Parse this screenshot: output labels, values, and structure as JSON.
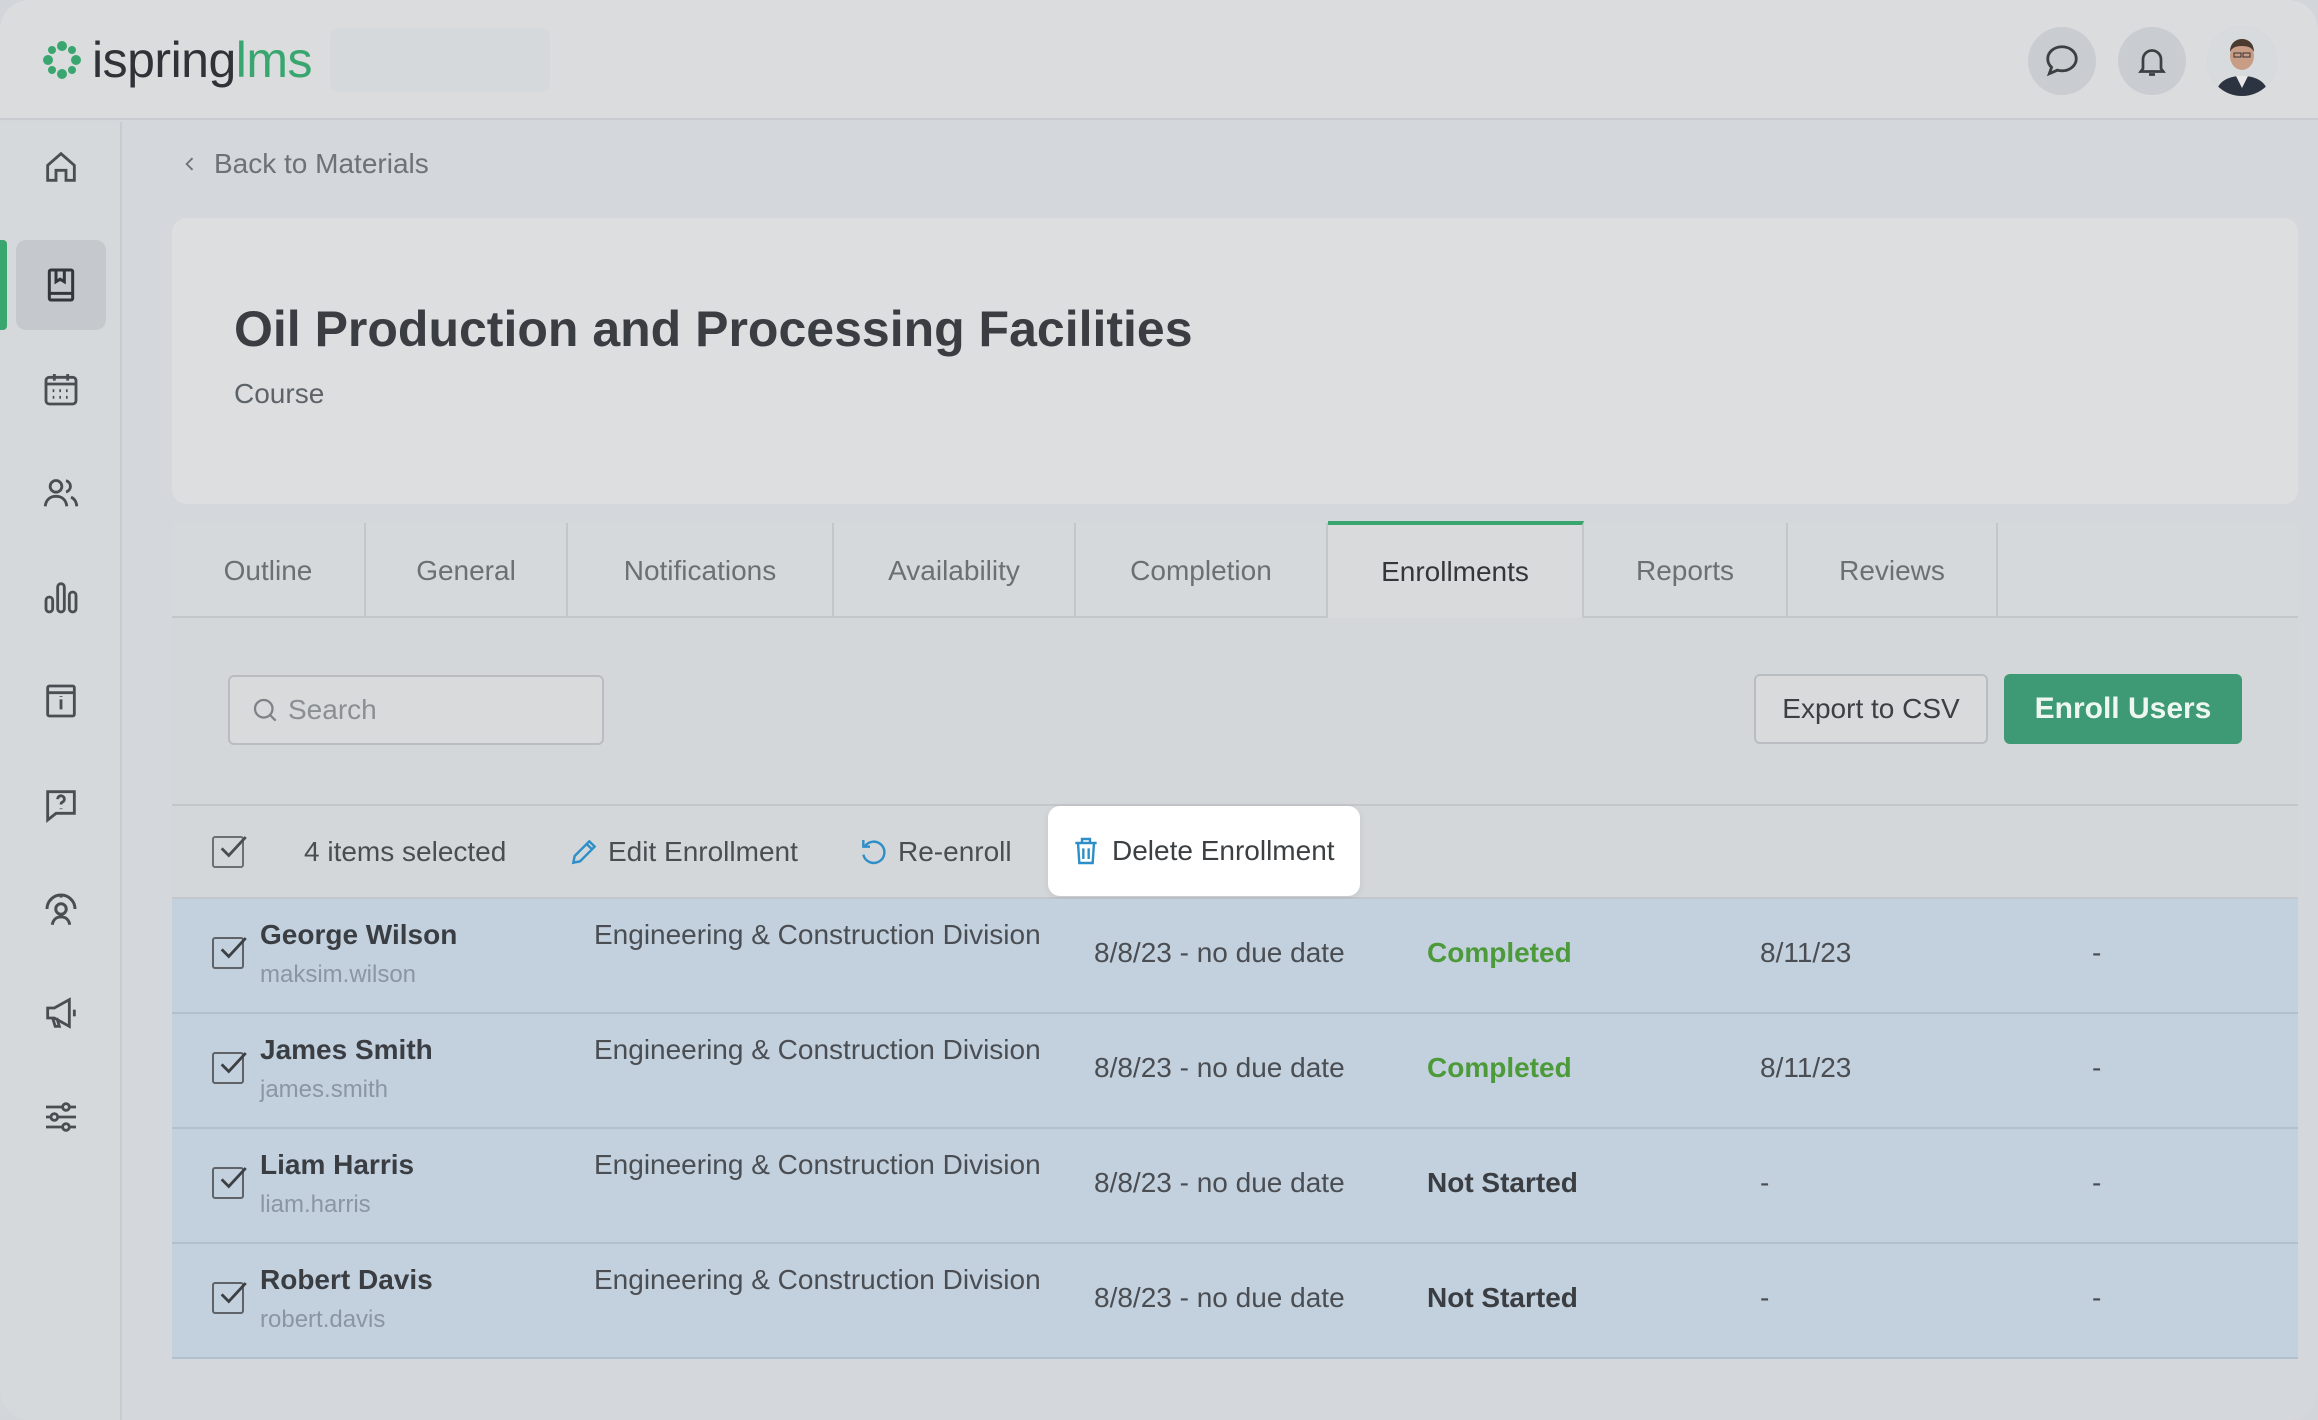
{
  "logo": {
    "brand_a": "ispring",
    "brand_b": "lms"
  },
  "colors": {
    "accent": "#3aa66f",
    "primary_button": "#3d9a74",
    "completed": "#4c9a3a",
    "selected_row": "#c3d0de"
  },
  "topbar": {
    "icons": [
      "chat-icon",
      "bell-icon"
    ]
  },
  "sidebar": {
    "items": [
      {
        "name": "home-icon"
      },
      {
        "name": "materials-icon",
        "active": true
      },
      {
        "name": "calendar-icon"
      },
      {
        "name": "users-icon"
      },
      {
        "name": "reports-icon"
      },
      {
        "name": "info-icon"
      },
      {
        "name": "help-icon"
      },
      {
        "name": "support-icon"
      },
      {
        "name": "megaphone-icon"
      },
      {
        "name": "settings-icon"
      }
    ]
  },
  "back": {
    "label": "Back to Materials"
  },
  "course": {
    "title": "Oil Production and Processing Facilities",
    "type": "Course"
  },
  "tabs": [
    {
      "label": "Outline"
    },
    {
      "label": "General"
    },
    {
      "label": "Notifications"
    },
    {
      "label": "Availability"
    },
    {
      "label": "Completion"
    },
    {
      "label": "Enrollments",
      "active": true
    },
    {
      "label": "Reports"
    },
    {
      "label": "Reviews"
    }
  ],
  "search": {
    "placeholder": "Search"
  },
  "actions": {
    "export": "Export to CSV",
    "enroll": "Enroll Users"
  },
  "selection": {
    "count_label": "4 items selected",
    "edit": "Edit Enrollment",
    "reenroll": "Re-enroll",
    "delete": "Delete Enrollment"
  },
  "rows": [
    {
      "name": "George Wilson",
      "login": "maksim.wilson",
      "division": "Engineering & Construction Division",
      "date": "8/8/23 - no due date",
      "status": "Completed",
      "completed_on": "8/11/23",
      "extra": "-"
    },
    {
      "name": "James Smith",
      "login": "james.smith",
      "division": "Engineering & Construction Division",
      "date": "8/8/23 - no due date",
      "status": "Completed",
      "completed_on": "8/11/23",
      "extra": "-"
    },
    {
      "name": "Liam Harris",
      "login": "liam.harris",
      "division": "Engineering & Construction Division",
      "date": "8/8/23 - no due date",
      "status": "Not Started",
      "completed_on": "-",
      "extra": "-"
    },
    {
      "name": "Robert Davis",
      "login": "robert.davis",
      "division": "Engineering & Construction Division",
      "date": "8/8/23 - no due date",
      "status": "Not Started",
      "completed_on": "-",
      "extra": "-"
    }
  ]
}
